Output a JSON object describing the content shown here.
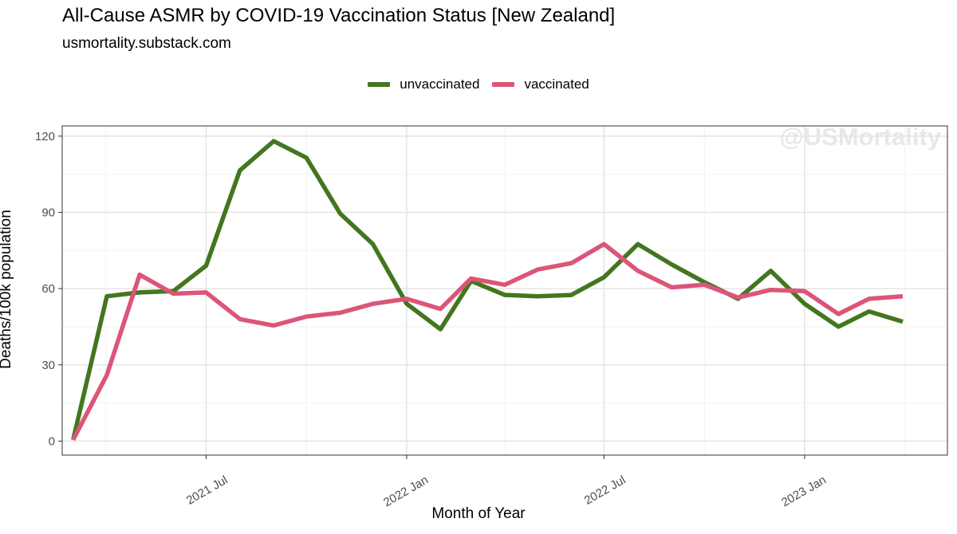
{
  "header": {
    "title": "All-Cause ASMR by COVID-19 Vaccination Status [New Zealand]",
    "subtitle": "usmortality.substack.com"
  },
  "watermark": "@USMortality",
  "legend": {
    "position": "top-center",
    "items": [
      {
        "label": "unvaccinated",
        "color": "#43761F"
      },
      {
        "label": "vaccinated",
        "color": "#DC5578"
      }
    ]
  },
  "chart_data": {
    "type": "line",
    "xlabel": "Month of Year",
    "ylabel": "Deaths/100k population",
    "ylim": [
      -5.5,
      124
    ],
    "xlim": [
      "2021-02-19",
      "2023-05-12"
    ],
    "y_ticks": [
      0,
      30,
      60,
      90,
      120
    ],
    "x_ticks": [
      {
        "label": "2021 Jul",
        "date": "2021-07-01"
      },
      {
        "label": "2022 Jan",
        "date": "2022-01-01"
      },
      {
        "label": "2022 Jul",
        "date": "2022-07-01"
      },
      {
        "label": "2023 Jan",
        "date": "2023-01-01"
      }
    ],
    "grid": true,
    "x": [
      "2021-03-01",
      "2021-04-01",
      "2021-05-01",
      "2021-06-01",
      "2021-07-01",
      "2021-08-01",
      "2021-09-01",
      "2021-10-01",
      "2021-11-01",
      "2021-12-01",
      "2022-01-01",
      "2022-02-01",
      "2022-03-01",
      "2022-04-01",
      "2022-05-01",
      "2022-06-01",
      "2022-07-01",
      "2022-08-01",
      "2022-09-01",
      "2022-10-01",
      "2022-11-01",
      "2022-12-01",
      "2023-01-01",
      "2023-02-01",
      "2023-03-01",
      "2023-04-01"
    ],
    "series": [
      {
        "name": "unvaccinated",
        "color": "#43761F",
        "values": [
          0.5,
          57,
          58.5,
          59,
          69,
          106.5,
          118,
          111.5,
          89.5,
          77.5,
          54,
          44,
          63,
          57.5,
          57,
          57.5,
          64.5,
          77.5,
          69.5,
          62.5,
          56,
          67,
          54,
          45,
          51,
          47
        ]
      },
      {
        "name": "vaccinated",
        "color": "#DC5578",
        "values": [
          0.5,
          26,
          65.5,
          58,
          58.5,
          48,
          45.5,
          49,
          50.5,
          54,
          56,
          52,
          64,
          61.5,
          67.5,
          70,
          77.5,
          67,
          60.5,
          61.5,
          56.5,
          59.5,
          59,
          50,
          56,
          57
        ]
      }
    ]
  }
}
